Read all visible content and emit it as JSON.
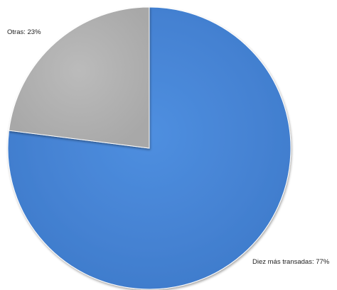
{
  "chart_data": {
    "type": "pie",
    "title": "",
    "slices": [
      {
        "label": "Diez más transadas",
        "value": 77,
        "display": "Diez más transadas: 77%",
        "color": "#4A88D8"
      },
      {
        "label": "Otras",
        "value": 23,
        "display": "Otras: 23%",
        "color": "#B2B2B2"
      }
    ],
    "legend": "none",
    "start_angle": "12 o'clock",
    "direction": "clockwise"
  }
}
